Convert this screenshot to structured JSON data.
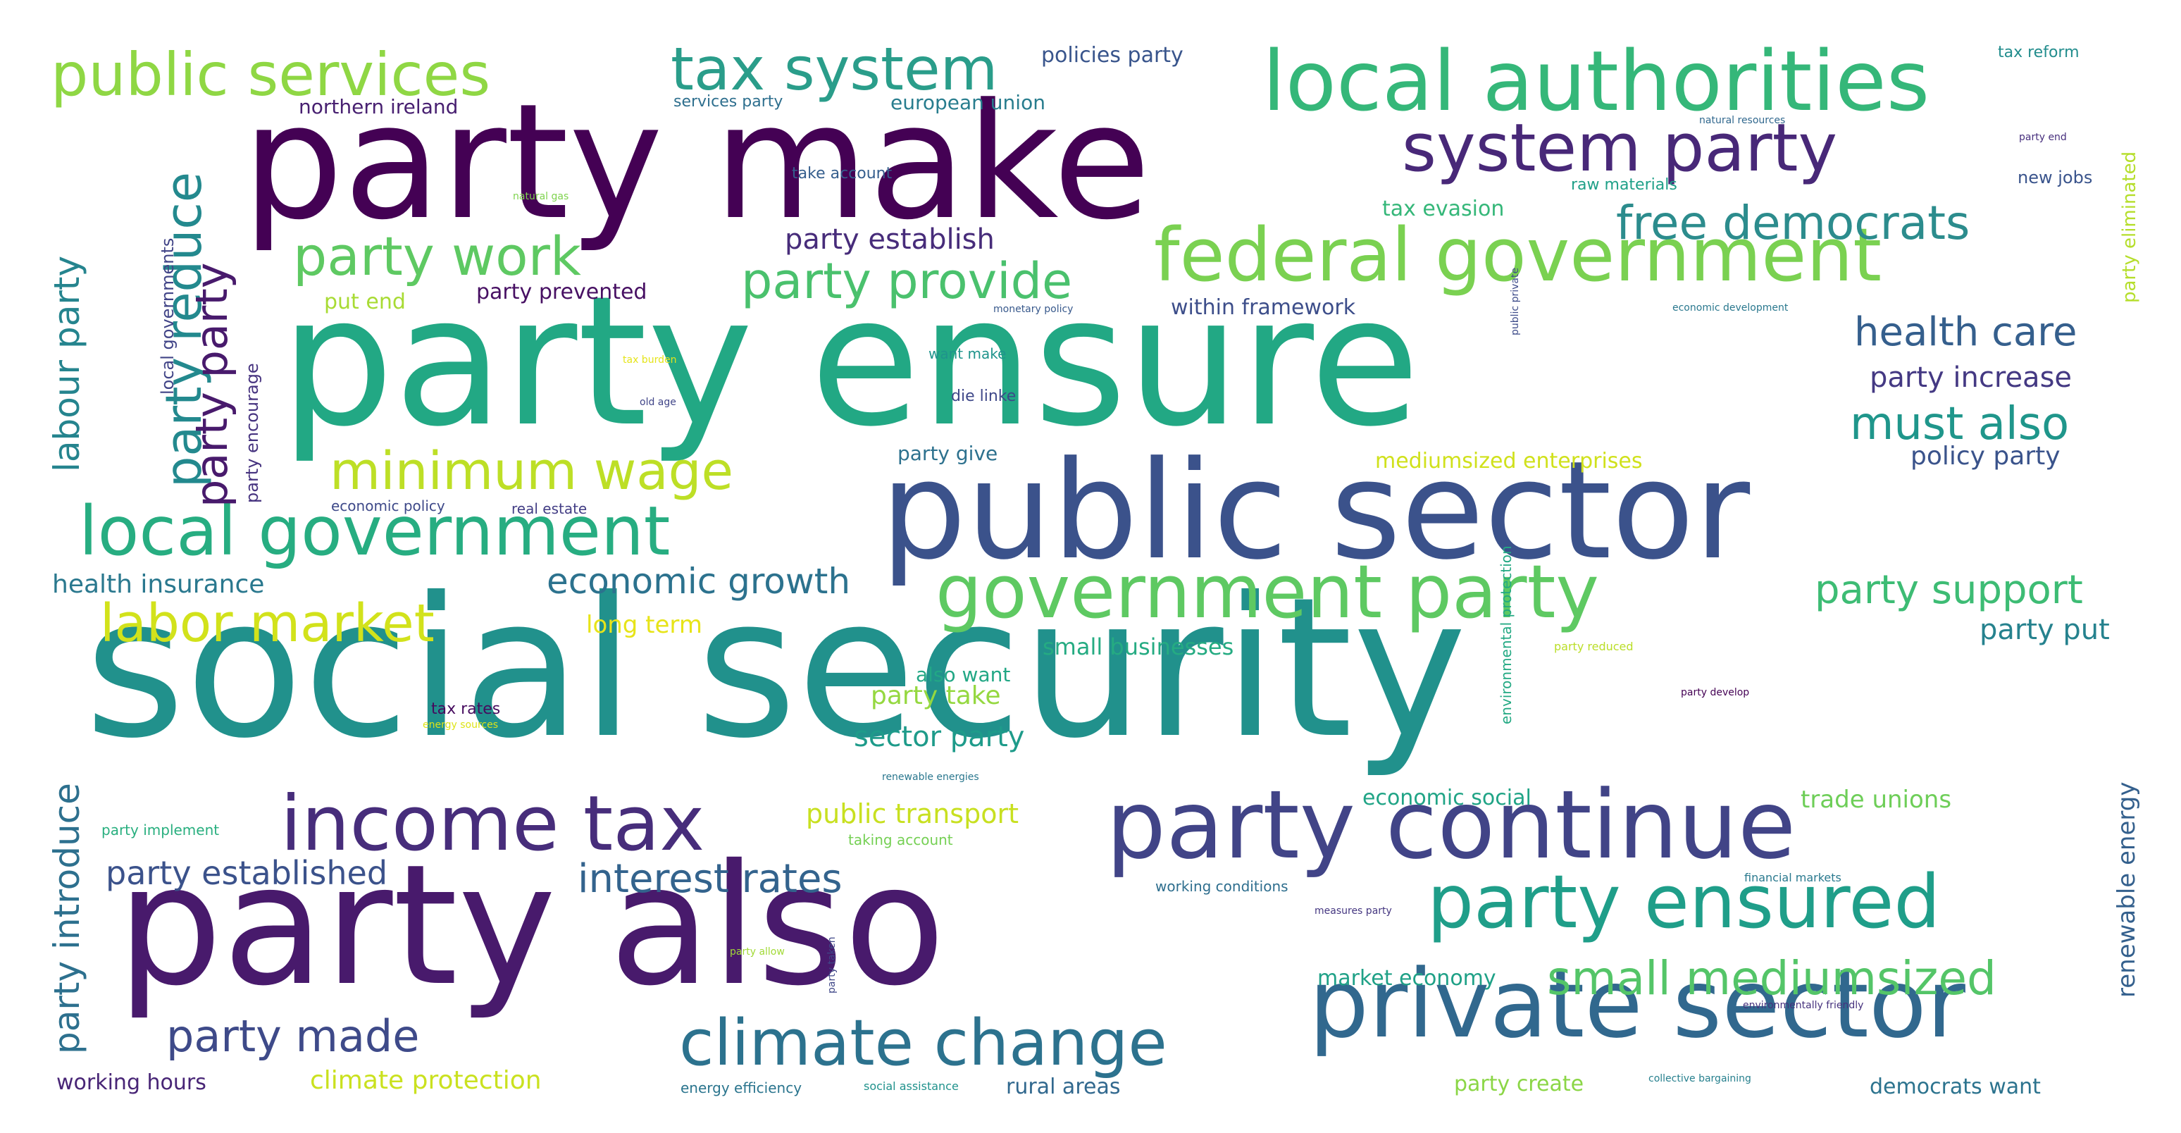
{
  "words": [
    {
      "text": "social security",
      "color": "#21918c"
    },
    {
      "text": "party ensure",
      "color": "#22a884"
    },
    {
      "text": "party make",
      "color": "#440154"
    },
    {
      "text": "party also",
      "color": "#481a6c"
    },
    {
      "text": "public sector",
      "color": "#3b528b"
    },
    {
      "text": "private sector",
      "color": "#31688e"
    },
    {
      "text": "party continue",
      "color": "#414487"
    },
    {
      "text": "local authorities",
      "color": "#35b779"
    },
    {
      "text": "federal government",
      "color": "#7ad151"
    },
    {
      "text": "government party",
      "color": "#5ec962"
    },
    {
      "text": "local government",
      "color": "#27ad81"
    },
    {
      "text": "income tax",
      "color": "#472d7b"
    },
    {
      "text": "climate change",
      "color": "#2c728e"
    },
    {
      "text": "party ensured",
      "color": "#1f9e89"
    },
    {
      "text": "system party",
      "color": "#482878"
    },
    {
      "text": "public services",
      "color": "#8fd744"
    },
    {
      "text": "tax system",
      "color": "#2a9d8a"
    },
    {
      "text": "party work",
      "color": "#5ec962"
    },
    {
      "text": "party provide",
      "color": "#4ac16d"
    },
    {
      "text": "minimum wage",
      "color": "#bddf26"
    },
    {
      "text": "labor market",
      "color": "#d2e21b"
    },
    {
      "text": "free democrats",
      "color": "#2c8c8d"
    },
    {
      "text": "small mediumsized",
      "color": "#54c568"
    },
    {
      "text": "party made",
      "color": "#3e4a89"
    },
    {
      "text": "interest rates",
      "color": "#33638d"
    },
    {
      "text": "health care",
      "color": "#355f8d"
    },
    {
      "text": "must also",
      "color": "#1f968b"
    },
    {
      "text": "party support",
      "color": "#3dbc74"
    },
    {
      "text": "economic growth",
      "color": "#2c728e"
    },
    {
      "text": "party established",
      "color": "#3b528b"
    },
    {
      "text": "party reduce",
      "color": "#23898e"
    },
    {
      "text": "party party",
      "color": "#481a6c"
    },
    {
      "text": "labour party",
      "color": "#25848e"
    },
    {
      "text": "party introduce",
      "color": "#2d708e"
    },
    {
      "text": "party increase",
      "color": "#443983"
    },
    {
      "text": "party establish",
      "color": "#472c7a"
    },
    {
      "text": "policy party",
      "color": "#3a538b"
    },
    {
      "text": "party put",
      "color": "#26828e"
    },
    {
      "text": "sector party",
      "color": "#1e9b8a"
    },
    {
      "text": "public transport",
      "color": "#c8e020"
    },
    {
      "text": "trade unions",
      "color": "#6ece58"
    },
    {
      "text": "renewable energy",
      "color": "#34608d"
    },
    {
      "text": "party take",
      "color": "#95d840"
    },
    {
      "text": "small businesses",
      "color": "#25ab82"
    },
    {
      "text": "economic social",
      "color": "#20a486"
    },
    {
      "text": "market economy",
      "color": "#1fa187"
    },
    {
      "text": "health insurance",
      "color": "#2a788e"
    },
    {
      "text": "working hours",
      "color": "#482576"
    },
    {
      "text": "climate protection",
      "color": "#cae11f"
    },
    {
      "text": "party create",
      "color": "#8bd646"
    },
    {
      "text": "rural areas",
      "color": "#31688e"
    },
    {
      "text": "democrats want",
      "color": "#2c738e"
    },
    {
      "text": "party give",
      "color": "#2d718e"
    },
    {
      "text": "also want",
      "color": "#22a785"
    },
    {
      "text": "long term",
      "color": "#e7e419"
    },
    {
      "text": "mediumsized enterprises",
      "color": "#d0e11c"
    },
    {
      "text": "party prevented",
      "color": "#471063"
    },
    {
      "text": "put end",
      "color": "#a8db34"
    },
    {
      "text": "within framework",
      "color": "#3d4e8a"
    },
    {
      "text": "tax evasion",
      "color": "#35b779"
    },
    {
      "text": "northern ireland",
      "color": "#482071"
    },
    {
      "text": "european union",
      "color": "#287d8e"
    },
    {
      "text": "policies party",
      "color": "#39558c"
    },
    {
      "text": "services party",
      "color": "#2e6f8e"
    },
    {
      "text": "take account",
      "color": "#355e8d"
    },
    {
      "text": "local governments",
      "color": "#414487"
    },
    {
      "text": "party encourage",
      "color": "#46337f"
    },
    {
      "text": "party eliminated",
      "color": "#b5de2b"
    },
    {
      "text": "tax reform",
      "color": "#228d8d"
    },
    {
      "text": "new jobs",
      "color": "#3a548c"
    },
    {
      "text": "raw materials",
      "color": "#1fa088"
    },
    {
      "text": "natural resources",
      "color": "#31688e"
    },
    {
      "text": "party end",
      "color": "#472f7d"
    },
    {
      "text": "public private",
      "color": "#3e4c8a"
    },
    {
      "text": "natural gas",
      "color": "#7fd34e"
    },
    {
      "text": "monetary policy",
      "color": "#38598c"
    },
    {
      "text": "economic development",
      "color": "#2a788e"
    },
    {
      "text": "tax burden",
      "color": "#e5e419"
    },
    {
      "text": "want make",
      "color": "#1f948c"
    },
    {
      "text": "old age",
      "color": "#404588"
    },
    {
      "text": "die linke",
      "color": "#3f4889"
    },
    {
      "text": "economic policy",
      "color": "#3e4989"
    },
    {
      "text": "real estate",
      "color": "#433e85"
    },
    {
      "text": "environmental protection",
      "color": "#23a983"
    },
    {
      "text": "party reduced",
      "color": "#bade28"
    },
    {
      "text": "party develop",
      "color": "#440154"
    },
    {
      "text": "tax rates",
      "color": "#460b5e"
    },
    {
      "text": "energy sources",
      "color": "#dde318"
    },
    {
      "text": "renewable energies",
      "color": "#2a778e"
    },
    {
      "text": "party implement",
      "color": "#29af7f"
    },
    {
      "text": "taking account",
      "color": "#75d054"
    },
    {
      "text": "working conditions",
      "color": "#2e6e8e"
    },
    {
      "text": "financial markets",
      "color": "#29798e"
    },
    {
      "text": "measures party",
      "color": "#453781"
    },
    {
      "text": "party allow",
      "color": "#a2da37"
    },
    {
      "text": "party taken",
      "color": "#3f4788"
    },
    {
      "text": "environmentally friendly",
      "color": "#46327e"
    },
    {
      "text": "energy efficiency",
      "color": "#2b758e"
    },
    {
      "text": "social assistance",
      "color": "#20928c"
    },
    {
      "text": "collective bargaining",
      "color": "#27808e"
    }
  ]
}
